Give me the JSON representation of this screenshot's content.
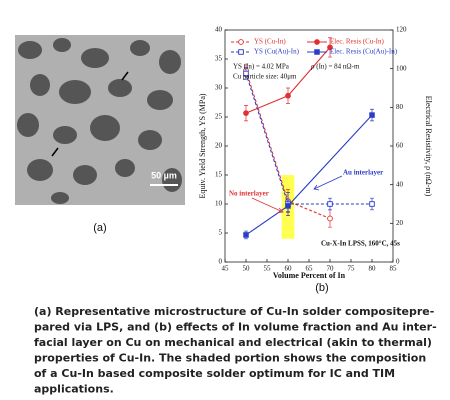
{
  "figure_a": {
    "label": "(a)",
    "scale_bar": "50 µm"
  },
  "chart_data": {
    "type": "line",
    "label": "(b)",
    "xlabel": "Volume Percent of In",
    "ylabel": "Equiv. Yield Strength, YS (MPa)",
    "y2label": "Electrical Resistivity, ρ (nΩ-m)",
    "xlim": [
      45,
      85
    ],
    "xticks": [
      45,
      50,
      55,
      60,
      65,
      70,
      75,
      80,
      85
    ],
    "ylim": [
      0,
      40
    ],
    "yticks": [
      0,
      5,
      10,
      15,
      20,
      25,
      30,
      35,
      40
    ],
    "y2lim": [
      0,
      120
    ],
    "y2ticks": [
      0,
      20,
      40,
      60,
      80,
      100,
      120
    ],
    "legend": "upper left",
    "highlight": {
      "x": [
        58.5,
        61.5
      ],
      "y": [
        4,
        15
      ],
      "color": "#ffff33"
    },
    "series": [
      {
        "name": "YS (Cu-In)",
        "color": "#e03030",
        "marker": "circle",
        "filled": false,
        "dashed": true,
        "axis": "y",
        "x": [
          50,
          60,
          70
        ],
        "values": [
          33,
          10.5,
          7.5
        ],
        "errors": [
          1,
          2,
          1.5
        ]
      },
      {
        "name": "Elec. Resis (Cu-In)",
        "color": "#e03030",
        "marker": "circle",
        "filled": true,
        "dashed": false,
        "axis": "y2",
        "x": [
          50,
          60,
          70
        ],
        "values": [
          77,
          86,
          111
        ],
        "errors": [
          4,
          4,
          5
        ]
      },
      {
        "name": "YS (Cu(Au)-In)",
        "color": "#2a3cc8",
        "marker": "square",
        "filled": false,
        "dashed": true,
        "axis": "y",
        "x": [
          50,
          60,
          70,
          80
        ],
        "values": [
          32.5,
          10,
          10,
          10
        ],
        "errors": [
          1,
          2,
          1,
          1
        ]
      },
      {
        "name": "Elec. Resis (Cu(Au)-In)",
        "color": "#2a3cc8",
        "marker": "square",
        "filled": true,
        "dashed": false,
        "axis": "y2",
        "x": [
          50,
          60,
          80
        ],
        "values": [
          14,
          29,
          76
        ],
        "errors": [
          2,
          3,
          3
        ]
      }
    ],
    "annotations": [
      "YS (In) = 4.02 MPa",
      "ρ (In) = 84 nΩ-m",
      "Cu particle size: 40μm",
      "No interlayer",
      "Au interlayer",
      "Cu-X-In LPSS, 160°C, 45s"
    ]
  },
  "caption": [
    "(a) Representative microstructure of Cu-In solder compositepre-",
    "pared via LPS, and (b) effects of In volume fraction and Au inter-",
    "facial layer on Cu on mechanical and electrical (akin to thermal)",
    "properties of Cu-In. The shaded portion shows the composition",
    "of a Cu-In based composite solder optimum for IC and TIM",
    "applications."
  ]
}
